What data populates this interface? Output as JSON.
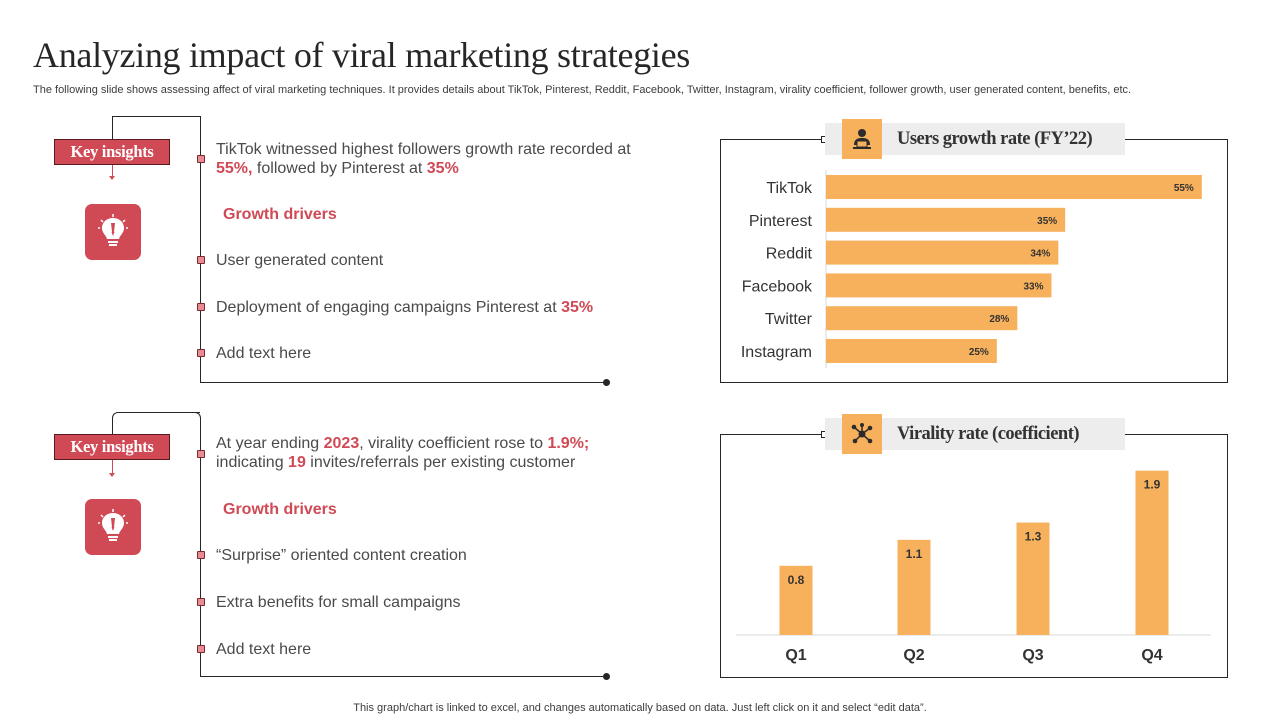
{
  "header": {
    "title": "Analyzing impact of viral marketing strategies",
    "subtitle": "The following slide shows assessing affect of viral marketing techniques. It provides details about TikTok, Pinterest, Reddit, Facebook, Twitter, Instagram, virality coefficient, follower growth, user generated content, benefits, etc."
  },
  "panel1": {
    "badge": "Key insights",
    "insight_a": "TikTok witnessed highest followers growth rate recorded at",
    "insight_b_val1": "55%,",
    "insight_b_mid": " followed by Pinterest at ",
    "insight_b_val2": "35%",
    "growth_title": "Growth drivers",
    "item1": "User generated content",
    "item2_text": "Deployment of engaging campaigns Pinterest at ",
    "item2_val": "35%",
    "item3": "Add text here"
  },
  "panel2": {
    "badge": "Key insights",
    "insight_pre": "At year ending ",
    "insight_year": "2023",
    "insight_mid": ", virality coefficient rose to ",
    "insight_val": "1.9%;",
    "insight_line2_pre": "indicating ",
    "insight_line2_val": "19",
    "insight_line2_post": " invites/referrals per existing customer",
    "growth_title": "Growth drivers",
    "item1": "“Surprise” oriented content creation",
    "item2": "Extra benefits for small campaigns",
    "item3": "Add text here"
  },
  "chart1_header": {
    "title": "Users growth rate (FY’22)",
    "icon": "user-laptop-icon"
  },
  "chart2_header": {
    "title": "Virality rate (coefficient)",
    "icon": "network-icon"
  },
  "footer": "This graph/chart is linked to excel,  and changes automatically based on data. Just left click on it and select “edit data”.",
  "colors": {
    "accent": "#d04a56",
    "bar": "#f7b05b",
    "text": "#404040"
  },
  "chart_data": [
    {
      "type": "bar",
      "orientation": "horizontal",
      "title": "Users growth rate (FY’22)",
      "categories": [
        "TikTok",
        "Pinterest",
        "Reddit",
        "Facebook",
        "Twitter",
        "Instagram"
      ],
      "values": [
        55,
        35,
        34,
        33,
        28,
        25
      ],
      "labels": [
        "55%",
        "35%",
        "34%",
        "33%",
        "28%",
        "25%"
      ],
      "xlim": [
        0,
        60
      ],
      "grid": false,
      "legend": "none"
    },
    {
      "type": "bar",
      "orientation": "vertical",
      "title": "Virality rate (coefficient)",
      "categories": [
        "Q1",
        "Q2",
        "Q3",
        "Q4"
      ],
      "values": [
        0.8,
        1.1,
        1.3,
        1.9
      ],
      "labels": [
        "0.8",
        "1.1",
        "1.3",
        "1.9"
      ],
      "ylim": [
        0,
        2.0
      ],
      "grid": false,
      "legend": "none"
    }
  ]
}
